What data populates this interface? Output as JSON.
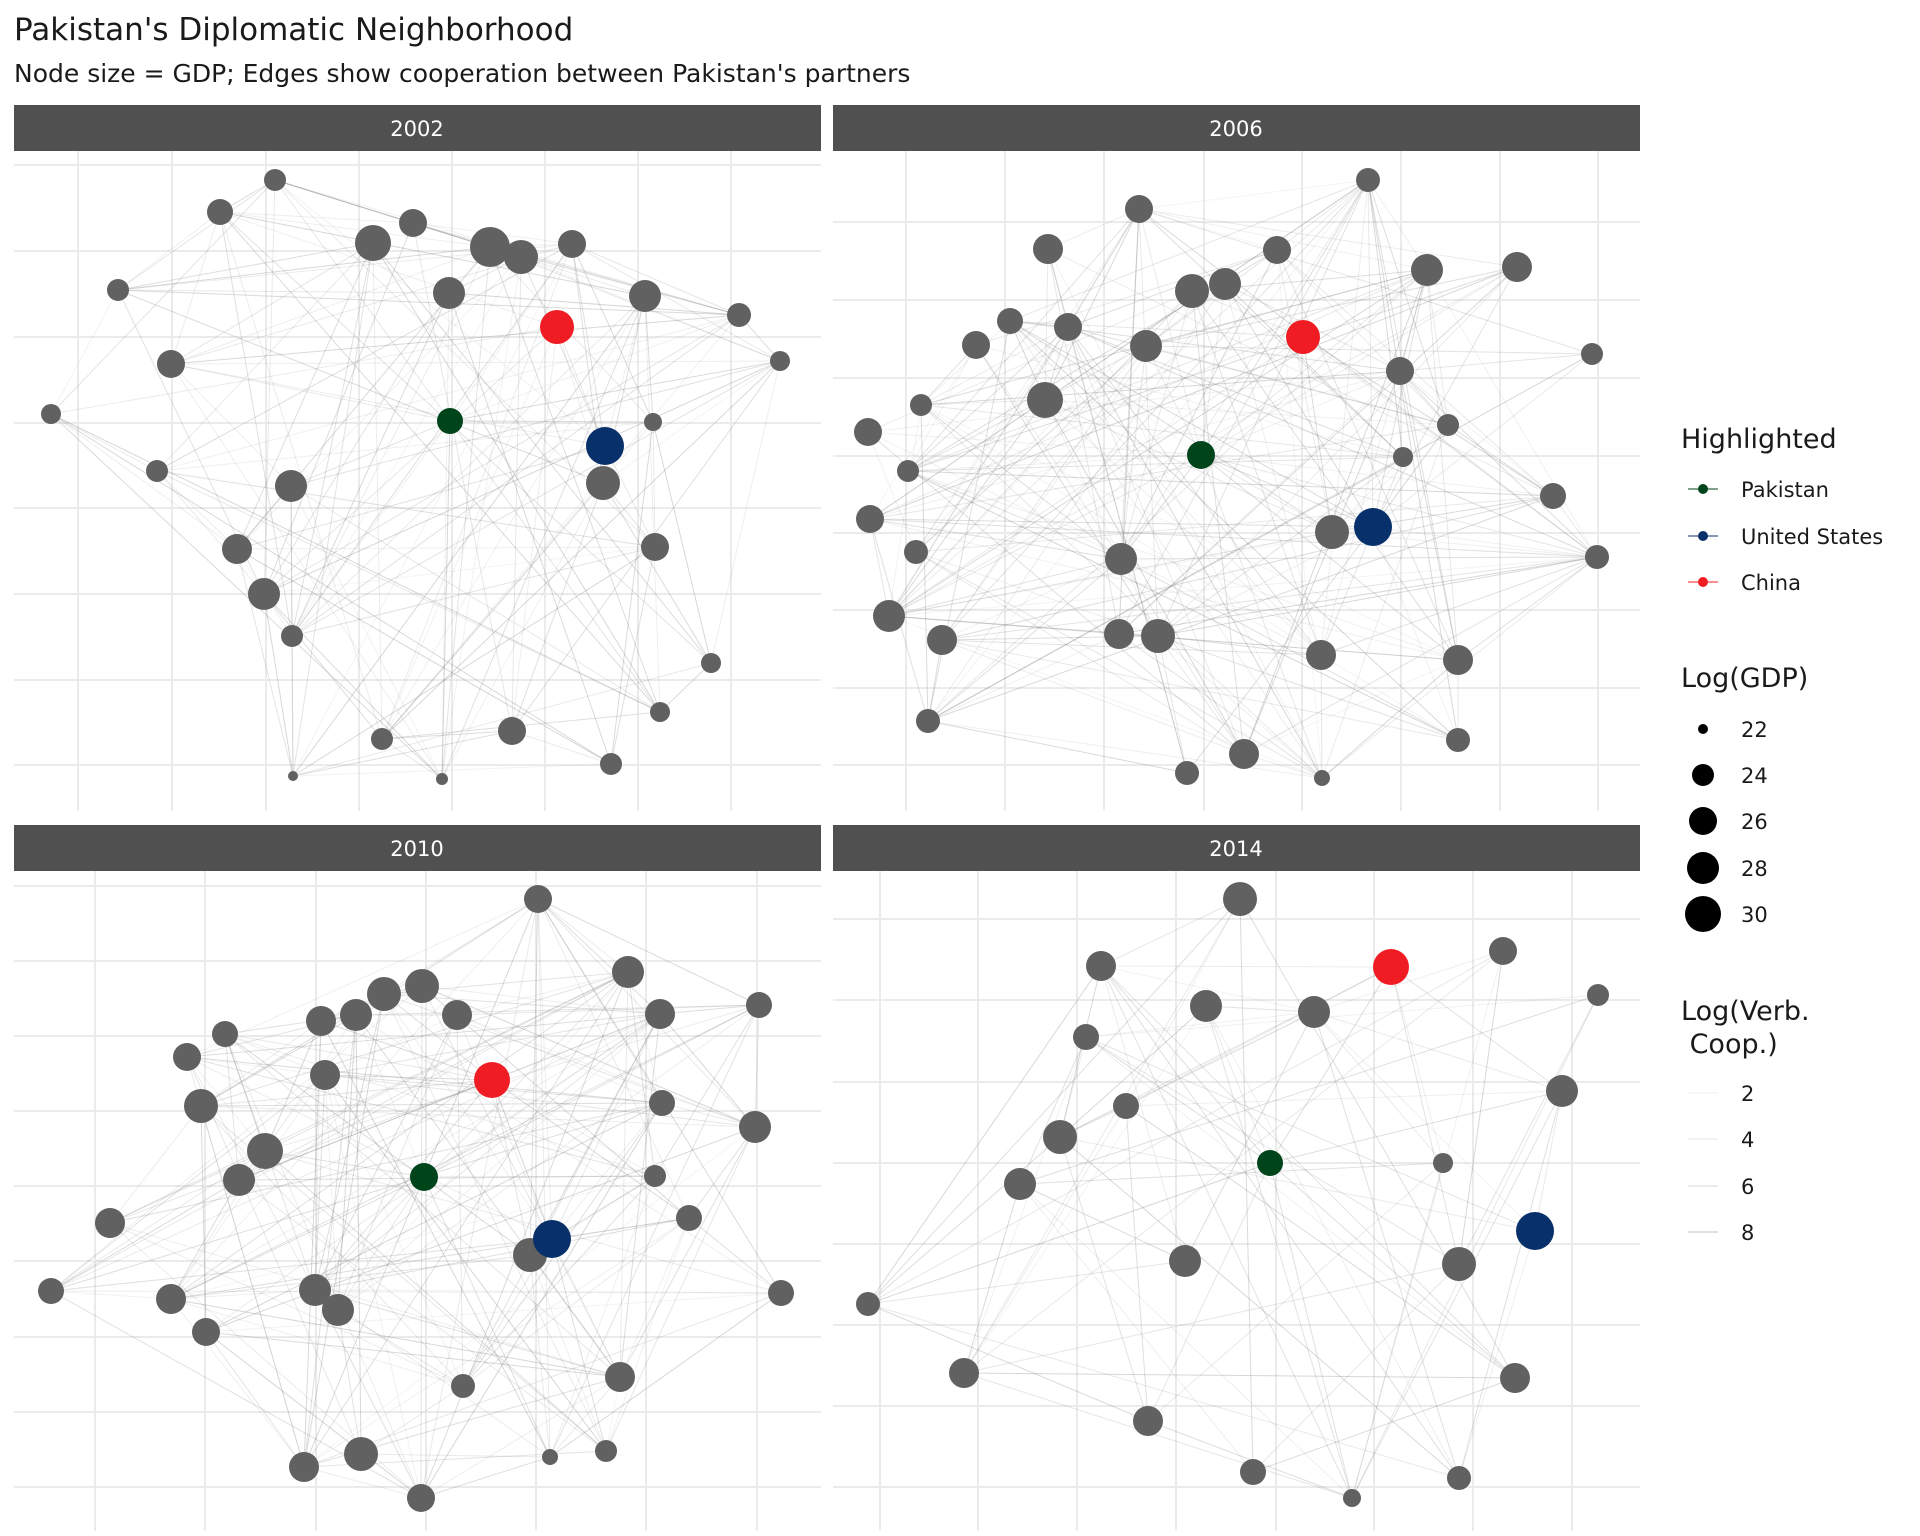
{
  "chart_data": {
    "type": "network",
    "title": "Pakistan's Diplomatic Neighborhood",
    "subtitle": "Node size = GDP; Edges show cooperation between Pakistan's partners",
    "facets": [
      "2002",
      "2006",
      "2010",
      "2014"
    ],
    "colors": {
      "pakistan": "#00441B",
      "united_states": "#08306B",
      "china": "#EF1C24",
      "other": "#616161",
      "strip": "#505050",
      "edge": "#7a7a7a"
    },
    "legend": {
      "highlighted": {
        "title": "Highlighted",
        "entries": [
          {
            "name": "Pakistan",
            "color": "#00441B"
          },
          {
            "name": "United States",
            "color": "#08306B"
          },
          {
            "name": "China",
            "color": "#EF1C24"
          }
        ]
      },
      "gdp": {
        "title": "Log(GDP)",
        "breaks": [
          "22",
          "24",
          "26",
          "28",
          "30"
        ],
        "values": [
          22,
          24,
          26,
          28,
          30
        ]
      },
      "coop": {
        "title_line1": "Log(Verb.",
        "title_line2": " Coop.)",
        "breaks": [
          "2",
          "4",
          "6",
          "8"
        ],
        "values": [
          2,
          4,
          6,
          8
        ]
      }
    }
  }
}
